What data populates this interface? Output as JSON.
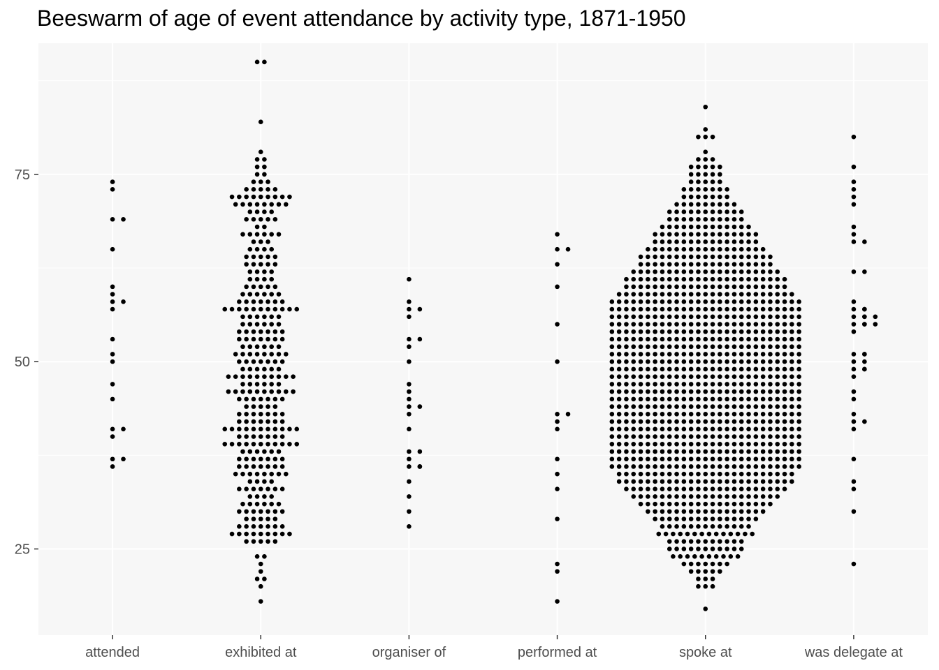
{
  "chart_data": {
    "type": "scatter",
    "subtype": "beeswarm",
    "title": "Beeswarm of age of event attendance by activity type, 1871-1950",
    "xlabel": "",
    "ylabel": "",
    "categories": [
      "attended",
      "exhibited at",
      "organiser of",
      "performed at",
      "spoke at",
      "was delegate at"
    ],
    "y_ticks": [
      25,
      50,
      75
    ],
    "y_tick_labels": [
      "25",
      "50",
      "75"
    ],
    "ylim": [
      13.5,
      92.5
    ],
    "grid": true,
    "legend": "none",
    "colors": {
      "panel": "#f7f7f7",
      "grid": "#ffffff",
      "point": "#000000",
      "tick_text": "#4d4d4d"
    },
    "series": [
      {
        "category": "attended",
        "ages": [
          36,
          37,
          37,
          40,
          41,
          41,
          45,
          47,
          50,
          51,
          53,
          57,
          58,
          58,
          59,
          60,
          65,
          69,
          69,
          73,
          74
        ]
      },
      {
        "category": "exhibited at",
        "dist": [
          [
            18,
            1
          ],
          [
            20,
            1
          ],
          [
            21,
            2
          ],
          [
            22,
            1
          ],
          [
            23,
            1
          ],
          [
            24,
            2
          ],
          [
            26,
            5
          ],
          [
            27,
            9
          ],
          [
            28,
            7
          ],
          [
            29,
            5
          ],
          [
            30,
            7
          ],
          [
            31,
            6
          ],
          [
            32,
            4
          ],
          [
            33,
            7
          ],
          [
            34,
            4
          ],
          [
            35,
            8
          ],
          [
            36,
            7
          ],
          [
            37,
            7
          ],
          [
            38,
            6
          ],
          [
            39,
            11
          ],
          [
            40,
            7
          ],
          [
            41,
            11
          ],
          [
            42,
            7
          ],
          [
            43,
            7
          ],
          [
            44,
            5
          ],
          [
            45,
            7
          ],
          [
            46,
            10
          ],
          [
            47,
            6
          ],
          [
            48,
            10
          ],
          [
            49,
            6
          ],
          [
            50,
            7
          ],
          [
            51,
            8
          ],
          [
            52,
            6
          ],
          [
            53,
            7
          ],
          [
            54,
            7
          ],
          [
            55,
            6
          ],
          [
            56,
            6
          ],
          [
            57,
            11
          ],
          [
            58,
            7
          ],
          [
            59,
            6
          ],
          [
            60,
            5
          ],
          [
            61,
            4
          ],
          [
            62,
            4
          ],
          [
            63,
            5
          ],
          [
            64,
            5
          ],
          [
            65,
            4
          ],
          [
            66,
            3
          ],
          [
            67,
            6
          ],
          [
            68,
            2
          ],
          [
            69,
            5
          ],
          [
            70,
            4
          ],
          [
            71,
            8
          ],
          [
            72,
            9
          ],
          [
            73,
            5
          ],
          [
            74,
            3
          ],
          [
            75,
            2
          ],
          [
            76,
            2
          ],
          [
            77,
            2
          ],
          [
            78,
            1
          ],
          [
            82,
            1
          ],
          [
            90,
            2
          ]
        ]
      },
      {
        "category": "organiser of",
        "ages": [
          28,
          30,
          32,
          34,
          36,
          36,
          36,
          37,
          38,
          38,
          41,
          43,
          44,
          44,
          45,
          46,
          47,
          50,
          52,
          53,
          53,
          56,
          57,
          57,
          58,
          61
        ]
      },
      {
        "category": "performed at",
        "ages": [
          18,
          22,
          23,
          29,
          33,
          35,
          37,
          41,
          42,
          43,
          43,
          50,
          55,
          60,
          63,
          65,
          65,
          67
        ]
      },
      {
        "category": "spoke at",
        "dist": [
          [
            17,
            1
          ],
          [
            20,
            3
          ],
          [
            21,
            3
          ],
          [
            22,
            5
          ],
          [
            23,
            7
          ],
          [
            24,
            10
          ],
          [
            25,
            11
          ],
          [
            26,
            11
          ],
          [
            27,
            14
          ],
          [
            28,
            13
          ],
          [
            29,
            15
          ],
          [
            30,
            17
          ],
          [
            31,
            19
          ],
          [
            32,
            21
          ],
          [
            33,
            23
          ],
          [
            34,
            25
          ],
          [
            35,
            25
          ],
          [
            36,
            27
          ],
          [
            37,
            27
          ],
          [
            38,
            27
          ],
          [
            39,
            27
          ],
          [
            40,
            27
          ],
          [
            41,
            27
          ],
          [
            42,
            27
          ],
          [
            43,
            27
          ],
          [
            44,
            27
          ],
          [
            45,
            27
          ],
          [
            46,
            27
          ],
          [
            47,
            27
          ],
          [
            48,
            27
          ],
          [
            49,
            27
          ],
          [
            50,
            27
          ],
          [
            51,
            27
          ],
          [
            52,
            27
          ],
          [
            53,
            27
          ],
          [
            54,
            27
          ],
          [
            55,
            27
          ],
          [
            56,
            27
          ],
          [
            57,
            27
          ],
          [
            58,
            27
          ],
          [
            59,
            25
          ],
          [
            60,
            23
          ],
          [
            61,
            23
          ],
          [
            62,
            21
          ],
          [
            63,
            19
          ],
          [
            64,
            19
          ],
          [
            65,
            17
          ],
          [
            66,
            15
          ],
          [
            67,
            15
          ],
          [
            68,
            13
          ],
          [
            69,
            11
          ],
          [
            70,
            11
          ],
          [
            71,
            9
          ],
          [
            72,
            7
          ],
          [
            73,
            7
          ],
          [
            74,
            5
          ],
          [
            75,
            5
          ],
          [
            76,
            5
          ],
          [
            77,
            3
          ],
          [
            78,
            1
          ],
          [
            80,
            3
          ],
          [
            81,
            1
          ],
          [
            84,
            1
          ]
        ]
      },
      {
        "category": "was delegate at",
        "ages": [
          23,
          30,
          33,
          34,
          37,
          41,
          42,
          42,
          43,
          45,
          46,
          48,
          49,
          49,
          49,
          50,
          50,
          51,
          51,
          51,
          54,
          55,
          55,
          55,
          55,
          56,
          56,
          56,
          56,
          57,
          57,
          57,
          58,
          62,
          62,
          66,
          66,
          67,
          68,
          71,
          72,
          73,
          74,
          76,
          80
        ]
      }
    ]
  }
}
